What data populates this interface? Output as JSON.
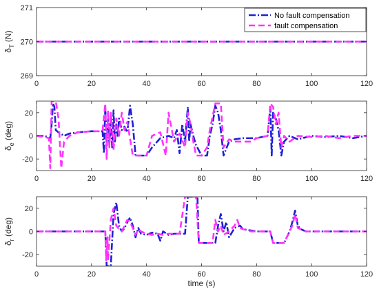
{
  "chart_data": [
    {
      "type": "line",
      "ylabel_main": "δ",
      "ylabel_sub": "T",
      "ylabel_unit": " (N)",
      "xlim": [
        0,
        120
      ],
      "ylim": [
        269,
        271
      ],
      "xticks": [
        0,
        20,
        40,
        60,
        80,
        100,
        120
      ],
      "yticks": [
        269,
        270,
        271
      ],
      "legend": {
        "placement": "top-right",
        "entries": [
          "No fault compensation",
          "fault compensation"
        ]
      },
      "series": [
        {
          "name": "No fault compensation",
          "color": "#1f1fd6",
          "style": "dashdot",
          "x": [
            0,
            120
          ],
          "y": [
            270,
            270
          ]
        },
        {
          "name": "fault compensation",
          "color": "#ff33ff",
          "style": "dash",
          "x": [
            0,
            120
          ],
          "y": [
            270,
            270
          ]
        }
      ]
    },
    {
      "type": "line",
      "ylabel_main": "δ",
      "ylabel_sub": "e",
      "ylabel_unit": " (deg)",
      "xlim": [
        0,
        120
      ],
      "ylim": [
        -30,
        30
      ],
      "xticks": [
        0,
        20,
        40,
        60,
        80,
        100,
        120
      ],
      "yticks": [
        -20,
        0,
        20
      ],
      "series": [
        {
          "name": "No fault compensation",
          "color": "#1f1fd6",
          "style": "dashdot",
          "x": [
            0,
            3,
            5,
            5.5,
            6,
            6.5,
            7,
            8,
            10,
            12,
            15,
            20,
            24,
            24.5,
            25,
            25.5,
            26,
            26.5,
            27,
            27.5,
            28,
            28.5,
            29,
            29.5,
            30,
            31,
            32,
            33,
            34,
            35,
            36,
            37,
            38,
            40,
            42,
            45,
            48,
            50,
            51,
            52,
            53,
            54,
            55,
            55.5,
            56,
            57,
            58,
            60,
            62,
            63,
            64,
            65,
            66,
            67,
            68,
            70,
            72,
            75,
            80,
            84,
            85,
            85.5,
            86,
            87,
            88,
            89,
            90,
            92,
            95,
            100,
            105,
            110,
            115,
            120
          ],
          "y": [
            0,
            0,
            -2,
            10,
            28,
            25,
            5,
            3,
            0,
            2,
            3,
            4,
            4,
            -15,
            25,
            -5,
            15,
            -8,
            18,
            -10,
            22,
            -5,
            10,
            0,
            15,
            5,
            8,
            3,
            26,
            10,
            -17,
            -17,
            -17,
            -17,
            -10,
            -2,
            0,
            -2,
            5,
            -15,
            10,
            -5,
            25,
            -5,
            10,
            0,
            -8,
            -17,
            -17,
            0,
            10,
            26,
            20,
            5,
            -17,
            -5,
            -3,
            -2,
            -2,
            0,
            25,
            -17,
            20,
            15,
            5,
            -17,
            -5,
            0,
            -3,
            0,
            -1,
            0,
            -2,
            0
          ]
        },
        {
          "name": "fault compensation",
          "color": "#ff33ff",
          "style": "dash",
          "x": [
            0,
            3,
            4.5,
            5,
            5.5,
            6,
            7,
            8,
            9,
            10,
            12,
            15,
            20,
            24,
            25,
            25.5,
            26,
            26.5,
            27,
            28,
            29,
            30,
            31,
            32,
            33,
            35,
            37,
            40,
            42,
            45,
            47,
            48,
            50,
            52,
            54,
            55,
            56,
            57,
            58,
            60,
            62,
            63,
            65,
            66,
            67,
            68,
            70,
            72,
            75,
            78,
            80,
            84,
            85,
            86,
            87,
            88,
            89,
            90,
            92,
            95,
            100,
            105,
            110,
            115,
            120
          ],
          "y": [
            0,
            -1,
            -2,
            -28,
            30,
            30,
            30,
            15,
            -28,
            -5,
            0,
            3,
            4,
            4,
            28,
            -20,
            22,
            -10,
            20,
            -12,
            15,
            0,
            20,
            5,
            12,
            -17,
            -17,
            -17,
            0,
            3,
            -17,
            20,
            -5,
            2,
            -10,
            20,
            10,
            -5,
            -17,
            -17,
            -10,
            5,
            28,
            28,
            28,
            -10,
            -3,
            -5,
            -5,
            -5,
            -2,
            0,
            28,
            25,
            10,
            20,
            -10,
            0,
            -5,
            0,
            -1,
            0,
            -2,
            0,
            0
          ]
        }
      ]
    },
    {
      "type": "line",
      "ylabel_main": "δ",
      "ylabel_sub": "r",
      "ylabel_unit": " (deg)",
      "xlim": [
        0,
        120
      ],
      "ylim": [
        -30,
        30
      ],
      "xlabel": "time (s)",
      "xticks": [
        0,
        20,
        40,
        60,
        80,
        100,
        120
      ],
      "yticks": [
        -20,
        0,
        20
      ],
      "series": [
        {
          "name": "No fault compensation",
          "color": "#1f1fd6",
          "style": "dashdot",
          "x": [
            0,
            10,
            20,
            25,
            25.5,
            26,
            26.5,
            27,
            28,
            29,
            30,
            31,
            32,
            33,
            34,
            35,
            36,
            37,
            38,
            40,
            42,
            44,
            45,
            46,
            48,
            50,
            52,
            54,
            55,
            56,
            57,
            58,
            58.5,
            59,
            60,
            62,
            65,
            66,
            67,
            68,
            69,
            70,
            72,
            74,
            75,
            80,
            84,
            85,
            86,
            88,
            90,
            92,
            93,
            94,
            95,
            96,
            98,
            100,
            105,
            110,
            115,
            120
          ],
          "y": [
            0,
            0,
            0,
            0,
            -30,
            -30,
            -30,
            -30,
            15,
            25,
            5,
            0,
            3,
            8,
            12,
            5,
            -5,
            3,
            -2,
            -3,
            -1,
            -2,
            -8,
            0,
            -3,
            -2,
            -2,
            -2,
            30,
            30,
            30,
            30,
            30,
            -10,
            -10,
            -10,
            -10,
            5,
            15,
            0,
            8,
            -5,
            3,
            5,
            2,
            0,
            0,
            0,
            -10,
            -10,
            -10,
            0,
            8,
            18,
            5,
            2,
            0,
            0,
            0,
            0,
            0,
            0
          ]
        },
        {
          "name": "fault compensation",
          "color": "#ff33ff",
          "style": "dash",
          "x": [
            0,
            10,
            20,
            25,
            25.3,
            25.8,
            26,
            27,
            28,
            29,
            30,
            31,
            32,
            33,
            34,
            35,
            36,
            37,
            38,
            40,
            42,
            44,
            46,
            48,
            50,
            52,
            54,
            54.5,
            56,
            57,
            58,
            59,
            60,
            62,
            64,
            65,
            66,
            67,
            68,
            70,
            72,
            73,
            74,
            75,
            78,
            80,
            84,
            85,
            86,
            88,
            90,
            92,
            93,
            94,
            95,
            96,
            98,
            100,
            105,
            110,
            115,
            120
          ],
          "y": [
            0,
            0,
            0,
            0,
            -25,
            -5,
            -25,
            10,
            20,
            5,
            2,
            0,
            5,
            10,
            8,
            3,
            -3,
            2,
            0,
            -2,
            -3,
            -2,
            -3,
            -2,
            -2,
            -2,
            30,
            30,
            30,
            30,
            30,
            -10,
            -10,
            -10,
            -10,
            10,
            0,
            5,
            -3,
            0,
            5,
            10,
            3,
            2,
            0,
            0,
            0,
            0,
            -10,
            -10,
            -10,
            0,
            5,
            15,
            3,
            2,
            0,
            0,
            0,
            0,
            0,
            0
          ]
        }
      ]
    }
  ]
}
